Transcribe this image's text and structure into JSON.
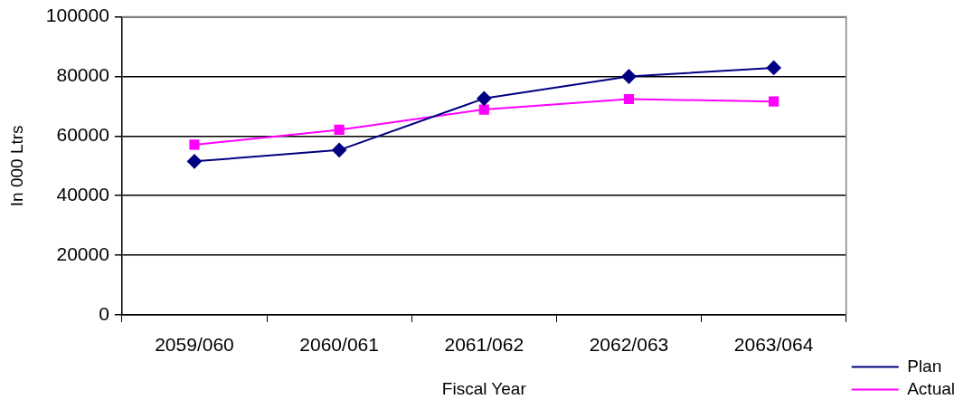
{
  "chart_data": {
    "type": "line",
    "xlabel": "Fiscal Year",
    "ylabel": "In 000 Ltrs",
    "categories": [
      "2059/060",
      "2060/061",
      "2061/062",
      "2062/063",
      "2063/064"
    ],
    "series": [
      {
        "name": "Plan",
        "color": "#000080",
        "marker": "diamond",
        "values": [
          51500,
          55300,
          72600,
          80000,
          82900
        ]
      },
      {
        "name": "Actual",
        "color": "#ff00ff",
        "marker": "square",
        "values": [
          57100,
          62100,
          68900,
          72400,
          71600
        ]
      }
    ],
    "ylim": [
      0,
      100000
    ],
    "yticks": [
      0,
      20000,
      40000,
      60000,
      80000,
      100000
    ],
    "grid": "y",
    "legend": "right"
  }
}
